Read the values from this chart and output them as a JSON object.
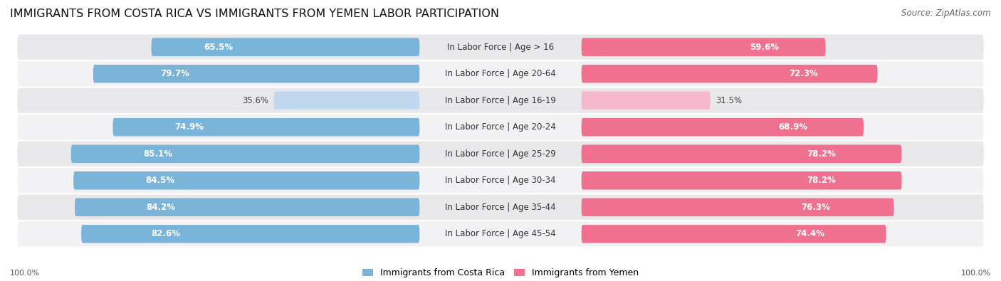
{
  "title": "IMMIGRANTS FROM COSTA RICA VS IMMIGRANTS FROM YEMEN LABOR PARTICIPATION",
  "source": "Source: ZipAtlas.com",
  "categories": [
    "In Labor Force | Age > 16",
    "In Labor Force | Age 20-64",
    "In Labor Force | Age 16-19",
    "In Labor Force | Age 20-24",
    "In Labor Force | Age 25-29",
    "In Labor Force | Age 30-34",
    "In Labor Force | Age 35-44",
    "In Labor Force | Age 45-54"
  ],
  "costa_rica_values": [
    65.5,
    79.7,
    35.6,
    74.9,
    85.1,
    84.5,
    84.2,
    82.6
  ],
  "yemen_values": [
    59.6,
    72.3,
    31.5,
    68.9,
    78.2,
    78.2,
    76.3,
    74.4
  ],
  "costa_rica_color": "#7ab4d8",
  "costa_rica_color_light": "#c0d8ee",
  "yemen_color": "#f07090",
  "yemen_color_light": "#f5b8cc",
  "row_bg_even": "#e8e8eb",
  "row_bg_odd": "#f2f2f5",
  "label_fontsize": 8.5,
  "value_fontsize": 8.5,
  "title_fontsize": 11.5,
  "source_fontsize": 8.5,
  "legend_fontsize": 9,
  "legend_labels": [
    "Immigrants from Costa Rica",
    "Immigrants from Yemen"
  ],
  "bottom_labels": [
    "100.0%",
    "100.0%"
  ],
  "light_threshold": 50
}
